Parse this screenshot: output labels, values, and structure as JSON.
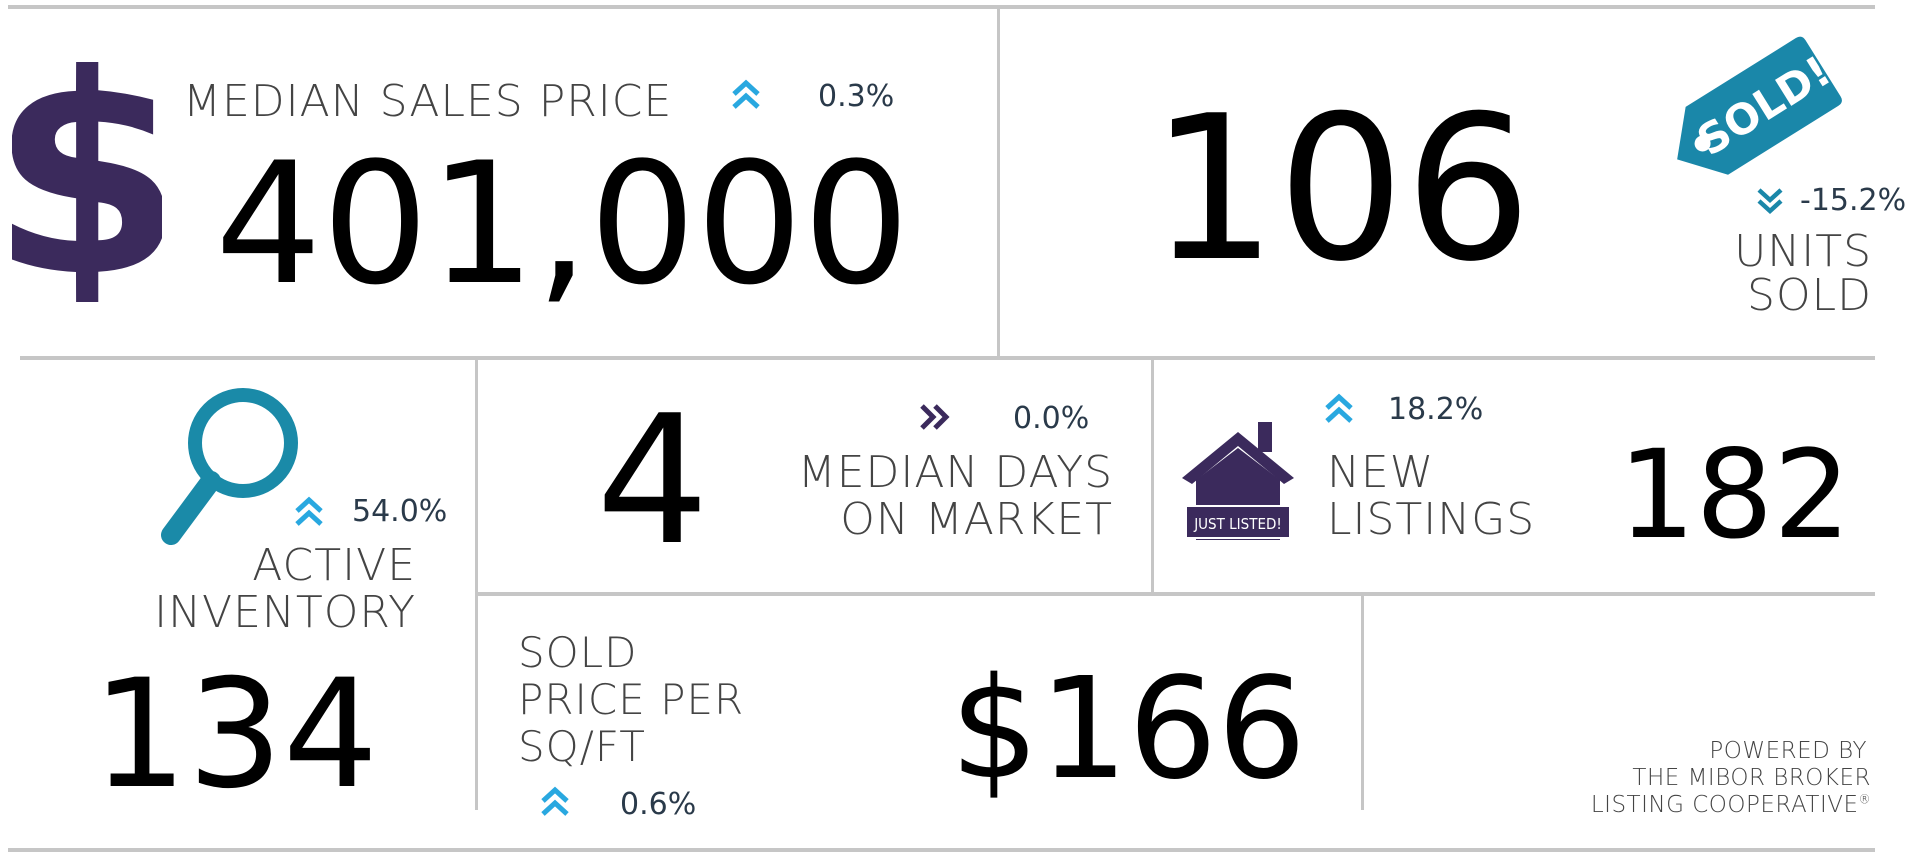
{
  "colors": {
    "dollar": "#3b2a5c",
    "tag": "#1a87a9",
    "magnifier": "#1a8aa8",
    "house": "#3b2a5c",
    "arrow_up": "#29a8e0",
    "arrow_down": "#1a87a9",
    "arrow_right": "#3b2a5c",
    "divider": "#c6c6c6"
  },
  "median_price": {
    "label": "MEDIAN SALES PRICE",
    "value": "401,000",
    "change": "0.3%",
    "direction": "up",
    "icon": "dollar-icon"
  },
  "units_sold": {
    "value": "106",
    "change": "-15.2%",
    "direction": "down",
    "label_line1": "UNITS",
    "label_line2": "SOLD",
    "icon": "sold-tag-icon",
    "tag_text": "SOLD!"
  },
  "active_inventory": {
    "change": "54.0%",
    "direction": "up",
    "label_line1": "ACTIVE",
    "label_line2": "INVENTORY",
    "value": "134",
    "icon": "magnifier-icon"
  },
  "days_on_market": {
    "value": "4",
    "change": "0.0%",
    "direction": "flat",
    "label_line1": "MEDIAN DAYS",
    "label_line2": "ON MARKET"
  },
  "new_listings": {
    "change": "18.2%",
    "direction": "up",
    "label_line1": "NEW",
    "label_line2": "LISTINGS",
    "value": "182",
    "icon": "house-icon",
    "house_sign": "JUST LISTED!"
  },
  "price_per_sqft": {
    "label_line1": "SOLD",
    "label_line2": "PRICE PER",
    "label_line3": "SQ/FT",
    "change": "0.6%",
    "direction": "up",
    "value": "$166"
  },
  "footer": {
    "line1": "POWERED BY",
    "line2": "THE MIBOR BROKER",
    "line3": "LISTING COOPERATIVE",
    "mark": "®"
  }
}
